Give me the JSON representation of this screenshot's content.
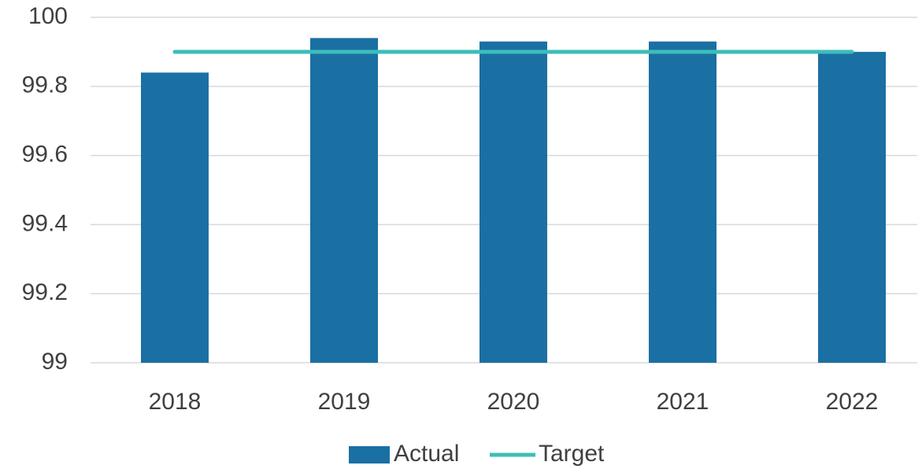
{
  "chart_data": {
    "type": "bar",
    "categories": [
      "2018",
      "2019",
      "2020",
      "2021",
      "2022"
    ],
    "series": [
      {
        "name": "Actual",
        "type": "bar",
        "color": "#1a70a3",
        "values": [
          99.84,
          99.94,
          99.93,
          99.93,
          99.9
        ]
      },
      {
        "name": "Target",
        "type": "line",
        "color": "#3dbdb9",
        "values": [
          99.9,
          99.9,
          99.9,
          99.9,
          99.9
        ]
      }
    ],
    "ylim": [
      99,
      100
    ],
    "yticks": [
      99,
      99.2,
      99.4,
      99.6,
      99.8,
      100
    ],
    "grid": true,
    "legend": "bottom"
  }
}
